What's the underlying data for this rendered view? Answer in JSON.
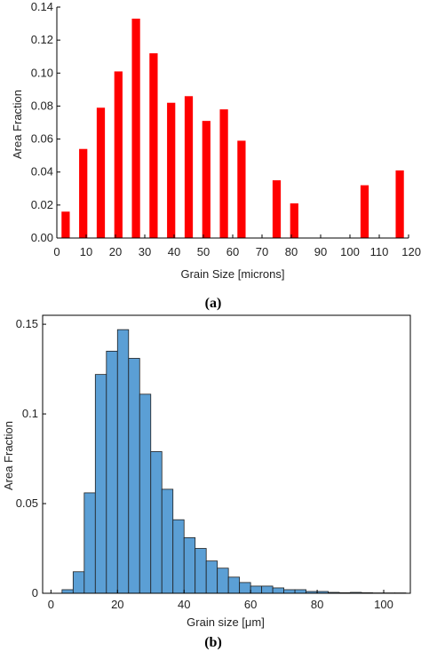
{
  "chart_data": [
    {
      "id": "a",
      "type": "bar",
      "caption": "(a)",
      "xlabel": "Grain Size [microns]",
      "ylabel": "Area Fraction",
      "xlim": [
        0,
        120
      ],
      "ylim": [
        0,
        0.14
      ],
      "xticks": [
        0,
        10,
        20,
        30,
        40,
        50,
        60,
        70,
        80,
        90,
        100,
        110,
        120
      ],
      "xtick_labels": [
        "0",
        "10",
        "20",
        "30",
        "40",
        "50",
        "60",
        "70",
        "80",
        "90",
        "100",
        "110",
        "120"
      ],
      "yticks": [
        0,
        0.02,
        0.04,
        0.06,
        0.08,
        0.1,
        0.12,
        0.14
      ],
      "ytick_labels": [
        "0.00",
        "0.02",
        "0.04",
        "0.06",
        "0.08",
        "0.10",
        "0.12",
        "0.14"
      ],
      "bar_color": "#ff0000",
      "bar_width": 2.8,
      "x": [
        3,
        9,
        15,
        21,
        27,
        33,
        39,
        45,
        51,
        57,
        63,
        75,
        81,
        105,
        117
      ],
      "values": [
        0.016,
        0.054,
        0.079,
        0.101,
        0.133,
        0.112,
        0.082,
        0.086,
        0.071,
        0.078,
        0.059,
        0.035,
        0.021,
        0.032,
        0.041
      ]
    },
    {
      "id": "b",
      "type": "bar",
      "caption": "(b)",
      "xlabel": "Grain size [μm]",
      "ylabel": "Area Fraction",
      "xlim": [
        -2.5,
        108
      ],
      "ylim": [
        0,
        0.155
      ],
      "xticks": [
        0,
        20,
        40,
        60,
        80,
        100
      ],
      "xtick_labels": [
        "0",
        "20",
        "40",
        "60",
        "80",
        "100"
      ],
      "yticks": [
        0,
        0.05,
        0.1,
        0.15
      ],
      "ytick_labels": [
        "0",
        "0.05",
        "0.1",
        "0.15"
      ],
      "bar_color": "#5b9fd5",
      "bin_width": 3.333,
      "bin_start": 3.333,
      "values": [
        0.002,
        0.012,
        0.056,
        0.122,
        0.135,
        0.147,
        0.131,
        0.111,
        0.079,
        0.058,
        0.041,
        0.031,
        0.025,
        0.018,
        0.014,
        0.009,
        0.006,
        0.004,
        0.004,
        0.003,
        0.002,
        0.002,
        0.001,
        0.001,
        0.0005,
        0.0003,
        0.0005,
        0.0003,
        0.0002,
        0.0002,
        0.0002
      ]
    }
  ]
}
